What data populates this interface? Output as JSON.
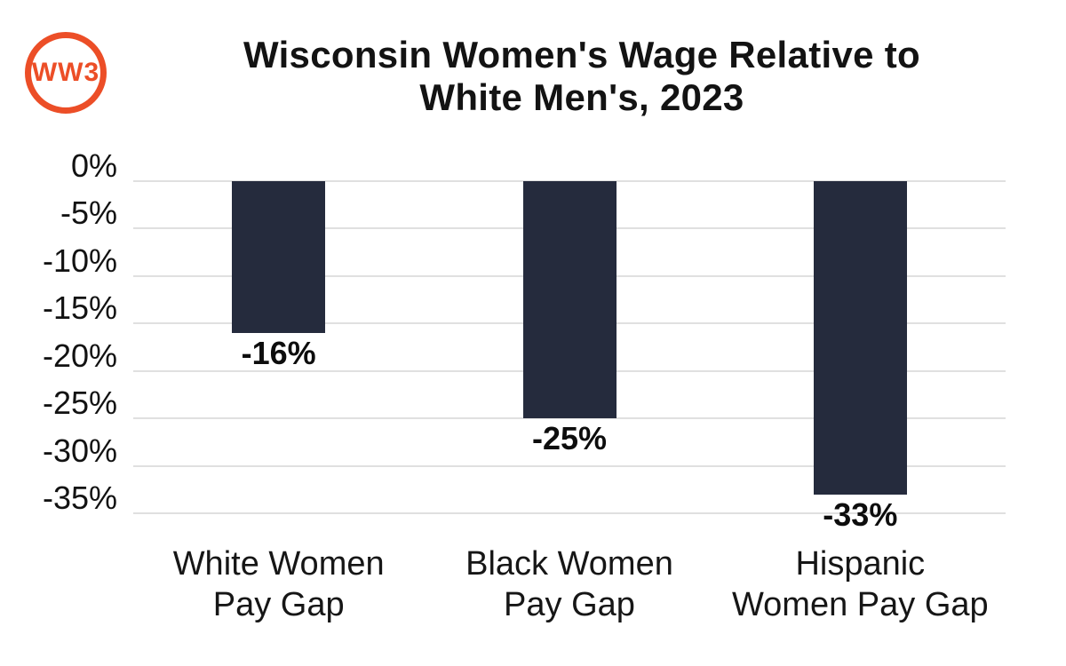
{
  "logo": {
    "text": "WW3",
    "ring_color": "#EC4E27"
  },
  "title": {
    "line1": "Wisconsin Women's Wage Relative to",
    "line2": "White Men's, 2023"
  },
  "colors": {
    "bar": "#252B3D",
    "grid": "#E0E0E0",
    "logo_orange": "#EC4E27",
    "background": "#FFFFFF",
    "text": "#141414"
  },
  "chart_data": {
    "type": "bar",
    "title": "Wisconsin Women's Wage Relative to White Men's, 2023",
    "categories": [
      [
        "White Women",
        "Pay Gap"
      ],
      [
        "Black Women",
        "Pay Gap"
      ],
      [
        "Hispanic",
        "Women Pay Gap"
      ]
    ],
    "values": [
      -16,
      -25,
      -33
    ],
    "data_labels": [
      "-16%",
      "-25%",
      "-33%"
    ],
    "y_ticks": [
      {
        "value": 0,
        "label": "0%"
      },
      {
        "value": -5,
        "label": "-5%"
      },
      {
        "value": -10,
        "label": "-10%"
      },
      {
        "value": -15,
        "label": "-15%"
      },
      {
        "value": -20,
        "label": "-20%"
      },
      {
        "value": -25,
        "label": "-25%"
      },
      {
        "value": -30,
        "label": "-30%"
      },
      {
        "value": -35,
        "label": "-35%"
      }
    ],
    "xlabel": "",
    "ylabel": "",
    "ylim": [
      0,
      -35
    ],
    "grid": true,
    "legend": false,
    "bar_color": "#252B3D",
    "grid_color": "#E0E0E0"
  }
}
